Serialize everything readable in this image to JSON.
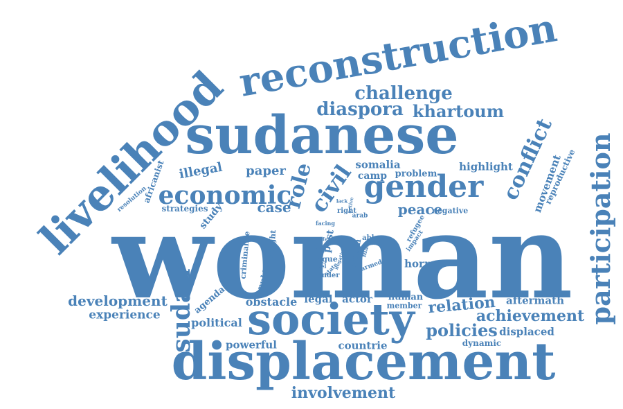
{
  "color": "#4a82b8",
  "background": "#ffffff",
  "words": [
    {
      "text": "woman"
    },
    {
      "text": "displacement"
    },
    {
      "text": "society"
    },
    {
      "text": "sudanese"
    },
    {
      "text": "reconstruction"
    },
    {
      "text": "livelihood"
    },
    {
      "text": "gender"
    },
    {
      "text": "participation"
    },
    {
      "text": "economic"
    },
    {
      "text": "sudan"
    },
    {
      "text": "civil"
    },
    {
      "text": "role"
    },
    {
      "text": "conflict"
    },
    {
      "text": "challenge"
    },
    {
      "text": "diaspora"
    },
    {
      "text": "khartoum"
    },
    {
      "text": "development"
    },
    {
      "text": "involvement"
    },
    {
      "text": "policies"
    },
    {
      "text": "relation"
    },
    {
      "text": "achievement"
    },
    {
      "text": "case"
    },
    {
      "text": "peace"
    },
    {
      "text": "paper"
    },
    {
      "text": "illegal"
    },
    {
      "text": "somalia"
    },
    {
      "text": "camp"
    },
    {
      "text": "problem"
    },
    {
      "text": "highlight"
    },
    {
      "text": "movement"
    },
    {
      "text": "reproductive"
    },
    {
      "text": "experience"
    },
    {
      "text": "political"
    },
    {
      "text": "obstacle"
    },
    {
      "text": "legal"
    },
    {
      "text": "actor"
    },
    {
      "text": "human"
    },
    {
      "text": "member"
    },
    {
      "text": "aftermath"
    },
    {
      "text": "displaced"
    },
    {
      "text": "dynamic"
    },
    {
      "text": "countrie"
    },
    {
      "text": "powerful"
    },
    {
      "text": "agenda"
    },
    {
      "text": "study"
    },
    {
      "text": "strategies"
    },
    {
      "text": "resolution"
    },
    {
      "text": "africanist"
    },
    {
      "text": "horn"
    },
    {
      "text": "negative"
    },
    {
      "text": "criminalise"
    },
    {
      "text": "public"
    },
    {
      "text": "caught"
    },
    {
      "text": "post"
    },
    {
      "text": "argue"
    },
    {
      "text": "victim"
    },
    {
      "text": "armed"
    },
    {
      "text": "able"
    },
    {
      "text": "many"
    },
    {
      "text": "refugee"
    },
    {
      "text": "impact"
    },
    {
      "text": "hinder"
    },
    {
      "text": "level"
    },
    {
      "text": "state"
    },
    {
      "text": "right"
    },
    {
      "text": "arab"
    },
    {
      "text": "facing"
    },
    {
      "text": "lack"
    },
    {
      "text": "life"
    },
    {
      "text": "active"
    },
    {
      "text": "face"
    },
    {
      "text": "negative"
    }
  ]
}
